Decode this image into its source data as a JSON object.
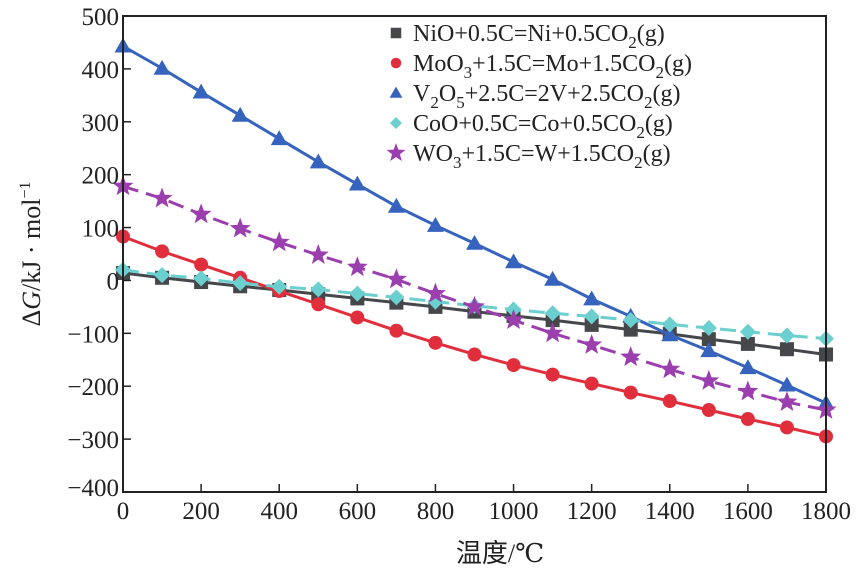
{
  "chart_data": {
    "type": "line",
    "title": "",
    "xlabel": "温度/℃",
    "ylabel": "ΔG/kJ · mol⁻¹",
    "xlim": [
      0,
      1800
    ],
    "ylim": [
      -400,
      500
    ],
    "xticks": [
      0,
      200,
      400,
      600,
      800,
      1000,
      1200,
      1400,
      1600,
      1800
    ],
    "yticks": [
      -400,
      -300,
      -200,
      -100,
      0,
      100,
      200,
      300,
      400,
      500
    ],
    "xtick_labels": [
      "0",
      "200",
      "400",
      "600",
      "800",
      "1000",
      "1200",
      "1400",
      "1600",
      "1800"
    ],
    "ytick_labels": [
      "−400",
      "−300",
      "−200",
      "−100",
      "0",
      "100",
      "200",
      "300",
      "400",
      "500"
    ],
    "grid": false,
    "legend_position": "top-right",
    "x": [
      0,
      100,
      200,
      300,
      400,
      500,
      600,
      700,
      800,
      900,
      1000,
      1100,
      1200,
      1300,
      1400,
      1500,
      1600,
      1700,
      1800
    ],
    "series": [
      {
        "name": "NiO+0.5C=Ni+0.5CO2(g)",
        "legend_parts": [
          [
            "NiO+0.5C=Ni+0.5CO",
            ""
          ],
          [
            "2",
            "sub"
          ],
          [
            "(g)",
            ""
          ]
        ],
        "color": "#45474b",
        "marker": "square",
        "dashed": false,
        "values": [
          14,
          5,
          -3,
          -11,
          -18,
          -26,
          -34,
          -42,
          -50,
          -59,
          -67,
          -75,
          -84,
          -93,
          -101,
          -111,
          -120,
          -130,
          -140
        ]
      },
      {
        "name": "MoO3+1.5C=Mo+1.5CO2(g)",
        "legend_parts": [
          [
            "MoO",
            ""
          ],
          [
            "3",
            "sub"
          ],
          [
            "+1.5C=Mo+1.5CO",
            ""
          ],
          [
            "2",
            "sub"
          ],
          [
            "(g)",
            ""
          ]
        ],
        "color": "#e02e3c",
        "marker": "circle",
        "dashed": false,
        "values": [
          83,
          55,
          30,
          5,
          -20,
          -45,
          -70,
          -95,
          -118,
          -140,
          -160,
          -178,
          -195,
          -212,
          -228,
          -245,
          -262,
          -278,
          -295
        ]
      },
      {
        "name": "V2O5+2.5C=2V+2.5CO2(g)",
        "legend_parts": [
          [
            "V",
            ""
          ],
          [
            "2",
            "sub"
          ],
          [
            "O",
            ""
          ],
          [
            "5",
            "sub"
          ],
          [
            "+2.5C=2V+2.5CO",
            ""
          ],
          [
            "2",
            "sub"
          ],
          [
            "(g)",
            ""
          ]
        ],
        "color": "#3563bd",
        "marker": "triangle",
        "dashed": false,
        "values": [
          443,
          401,
          356,
          312,
          268,
          224,
          182,
          140,
          104,
          70,
          35,
          2,
          -35,
          -68,
          -103,
          -133,
          -165,
          -198,
          -232
        ]
      },
      {
        "name": "CoO+0.5C=Co+0.5CO2(g)",
        "legend_parts": [
          [
            "CoO+0.5C=Co+0.5CO",
            ""
          ],
          [
            "2",
            "sub"
          ],
          [
            "(g)",
            ""
          ]
        ],
        "color": "#6ccfcf",
        "marker": "diamond",
        "dashed": true,
        "values": [
          20,
          10,
          4,
          -5,
          -12,
          -17,
          -25,
          -32,
          -40,
          -48,
          -55,
          -62,
          -68,
          -75,
          -83,
          -90,
          -97,
          -104,
          -110
        ]
      },
      {
        "name": "WO3+1.5C=W+1.5CO2(g)",
        "legend_parts": [
          [
            "WO",
            ""
          ],
          [
            "3",
            "sub"
          ],
          [
            "+1.5C=W+1.5CO",
            ""
          ],
          [
            "2",
            "sub"
          ],
          [
            "(g)",
            ""
          ]
        ],
        "color": "#9b3fae",
        "marker": "star",
        "dashed": true,
        "values": [
          178,
          155,
          125,
          98,
          72,
          48,
          25,
          2,
          -25,
          -50,
          -75,
          -100,
          -122,
          -145,
          -168,
          -190,
          -210,
          -230,
          -245
        ]
      }
    ]
  }
}
